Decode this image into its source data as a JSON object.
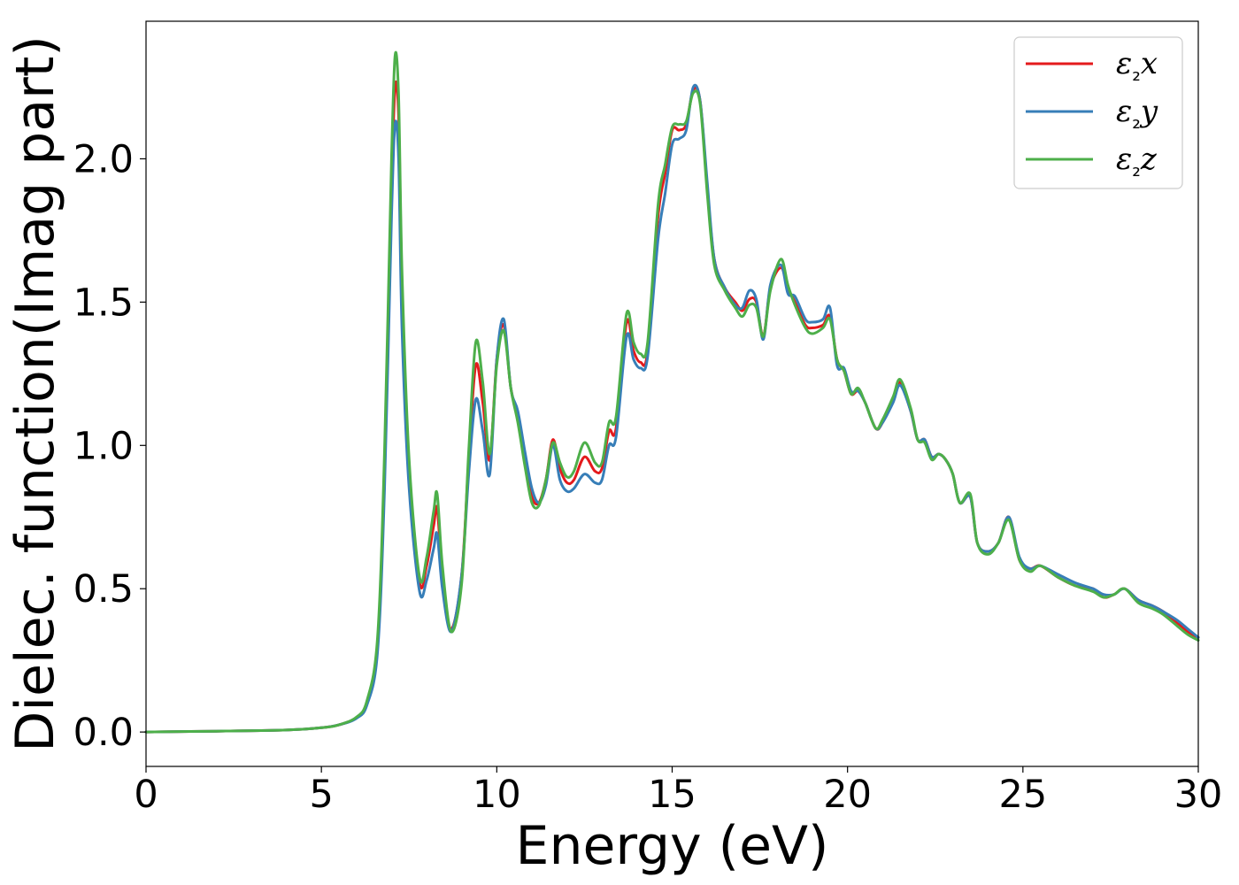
{
  "chart_data": {
    "type": "line",
    "title": "",
    "xlabel": "Energy (eV)",
    "ylabel": "Dielec. function(Imag part)",
    "xlim": [
      0,
      30
    ],
    "ylim": [
      -0.12,
      2.48
    ],
    "xticks": [
      0,
      5,
      10,
      15,
      20,
      25,
      30
    ],
    "xtick_labels": [
      "0",
      "5",
      "10",
      "15",
      "20",
      "25",
      "30"
    ],
    "yticks": [
      0.0,
      0.5,
      1.0,
      1.5,
      2.0
    ],
    "ytick_labels": [
      "0.0",
      "0.5",
      "1.0",
      "1.5",
      "2.0"
    ],
    "grid": false,
    "legend_position": "top-right",
    "x": [
      0,
      2,
      4,
      5,
      5.5,
      6,
      6.3,
      6.6,
      6.8,
      7.0,
      7.1,
      7.2,
      7.3,
      7.5,
      7.8,
      8.0,
      8.2,
      8.3,
      8.45,
      8.7,
      9.0,
      9.2,
      9.4,
      9.6,
      9.8,
      10.0,
      10.2,
      10.4,
      10.6,
      10.8,
      11.0,
      11.2,
      11.4,
      11.6,
      11.8,
      12.0,
      12.2,
      12.5,
      12.8,
      13.0,
      13.2,
      13.4,
      13.7,
      13.9,
      14.1,
      14.3,
      14.6,
      14.8,
      15.0,
      15.2,
      15.4,
      15.6,
      15.8,
      16.0,
      16.2,
      16.5,
      16.8,
      17.0,
      17.2,
      17.4,
      17.6,
      17.8,
      18.1,
      18.3,
      18.5,
      18.8,
      19.0,
      19.3,
      19.5,
      19.7,
      19.9,
      20.1,
      20.3,
      20.5,
      20.8,
      21.0,
      21.3,
      21.5,
      21.8,
      22.0,
      22.2,
      22.4,
      22.6,
      22.8,
      23.0,
      23.2,
      23.5,
      23.7,
      24.0,
      24.3,
      24.6,
      24.9,
      25.2,
      25.5,
      26.0,
      26.5,
      27.0,
      27.3,
      27.6,
      27.9,
      28.3,
      28.7,
      29.0,
      29.4,
      29.7,
      30.0
    ],
    "series": [
      {
        "name": "ε₂x",
        "color": "#e41a1c",
        "values": [
          0,
          0.003,
          0.007,
          0.015,
          0.025,
          0.05,
          0.1,
          0.3,
          0.9,
          1.9,
          2.25,
          2.15,
          1.55,
          0.9,
          0.52,
          0.58,
          0.72,
          0.78,
          0.55,
          0.36,
          0.55,
          0.95,
          1.28,
          1.15,
          0.95,
          1.3,
          1.42,
          1.2,
          1.1,
          0.95,
          0.82,
          0.8,
          0.88,
          1.02,
          0.92,
          0.87,
          0.88,
          0.96,
          0.91,
          0.92,
          1.05,
          1.06,
          1.43,
          1.33,
          1.29,
          1.33,
          1.8,
          1.95,
          2.1,
          2.1,
          2.12,
          2.24,
          2.2,
          1.9,
          1.65,
          1.55,
          1.5,
          1.47,
          1.51,
          1.5,
          1.38,
          1.55,
          1.62,
          1.55,
          1.5,
          1.42,
          1.41,
          1.42,
          1.45,
          1.3,
          1.26,
          1.18,
          1.19,
          1.15,
          1.06,
          1.08,
          1.16,
          1.22,
          1.12,
          1.02,
          1.02,
          0.96,
          0.97,
          0.95,
          0.9,
          0.8,
          0.82,
          0.66,
          0.63,
          0.66,
          0.75,
          0.6,
          0.57,
          0.58,
          0.54,
          0.51,
          0.5,
          0.47,
          0.48,
          0.5,
          0.46,
          0.44,
          0.42,
          0.38,
          0.35,
          0.33
        ]
      },
      {
        "name": "ε₂y",
        "color": "#377eb8",
        "values": [
          0,
          0.003,
          0.007,
          0.015,
          0.025,
          0.048,
          0.095,
          0.28,
          0.85,
          1.8,
          2.12,
          2.0,
          1.4,
          0.85,
          0.49,
          0.53,
          0.64,
          0.69,
          0.5,
          0.35,
          0.55,
          0.9,
          1.16,
          1.05,
          0.9,
          1.3,
          1.44,
          1.2,
          1.12,
          0.98,
          0.85,
          0.8,
          0.86,
          1.0,
          0.88,
          0.84,
          0.85,
          0.9,
          0.87,
          0.88,
          1.0,
          1.03,
          1.38,
          1.3,
          1.27,
          1.31,
          1.72,
          1.88,
          2.05,
          2.07,
          2.1,
          2.25,
          2.2,
          1.92,
          1.65,
          1.55,
          1.49,
          1.48,
          1.54,
          1.51,
          1.37,
          1.56,
          1.63,
          1.53,
          1.52,
          1.44,
          1.43,
          1.44,
          1.48,
          1.28,
          1.27,
          1.19,
          1.19,
          1.15,
          1.06,
          1.08,
          1.15,
          1.21,
          1.12,
          1.02,
          1.02,
          0.96,
          0.97,
          0.95,
          0.9,
          0.8,
          0.82,
          0.66,
          0.63,
          0.66,
          0.75,
          0.61,
          0.57,
          0.58,
          0.55,
          0.52,
          0.5,
          0.48,
          0.48,
          0.5,
          0.46,
          0.44,
          0.42,
          0.39,
          0.36,
          0.33
        ]
      },
      {
        "name": "ε₂z",
        "color": "#4daf4a",
        "values": [
          0,
          0.003,
          0.007,
          0.015,
          0.025,
          0.052,
          0.11,
          0.33,
          0.98,
          2.0,
          2.36,
          2.22,
          1.6,
          0.95,
          0.54,
          0.61,
          0.77,
          0.83,
          0.58,
          0.35,
          0.52,
          0.98,
          1.36,
          1.22,
          0.97,
          1.28,
          1.4,
          1.2,
          1.08,
          0.93,
          0.8,
          0.79,
          0.88,
          1.01,
          0.94,
          0.89,
          0.91,
          1.01,
          0.94,
          0.94,
          1.08,
          1.1,
          1.46,
          1.36,
          1.32,
          1.36,
          1.84,
          1.98,
          2.11,
          2.12,
          2.13,
          2.23,
          2.19,
          1.88,
          1.63,
          1.54,
          1.48,
          1.45,
          1.49,
          1.48,
          1.38,
          1.54,
          1.65,
          1.56,
          1.49,
          1.41,
          1.39,
          1.41,
          1.44,
          1.3,
          1.26,
          1.18,
          1.2,
          1.15,
          1.06,
          1.09,
          1.17,
          1.23,
          1.13,
          1.02,
          1.01,
          0.95,
          0.97,
          0.95,
          0.9,
          0.8,
          0.83,
          0.66,
          0.62,
          0.66,
          0.74,
          0.6,
          0.56,
          0.58,
          0.54,
          0.51,
          0.49,
          0.47,
          0.48,
          0.5,
          0.45,
          0.43,
          0.41,
          0.37,
          0.34,
          0.32
        ]
      }
    ]
  }
}
